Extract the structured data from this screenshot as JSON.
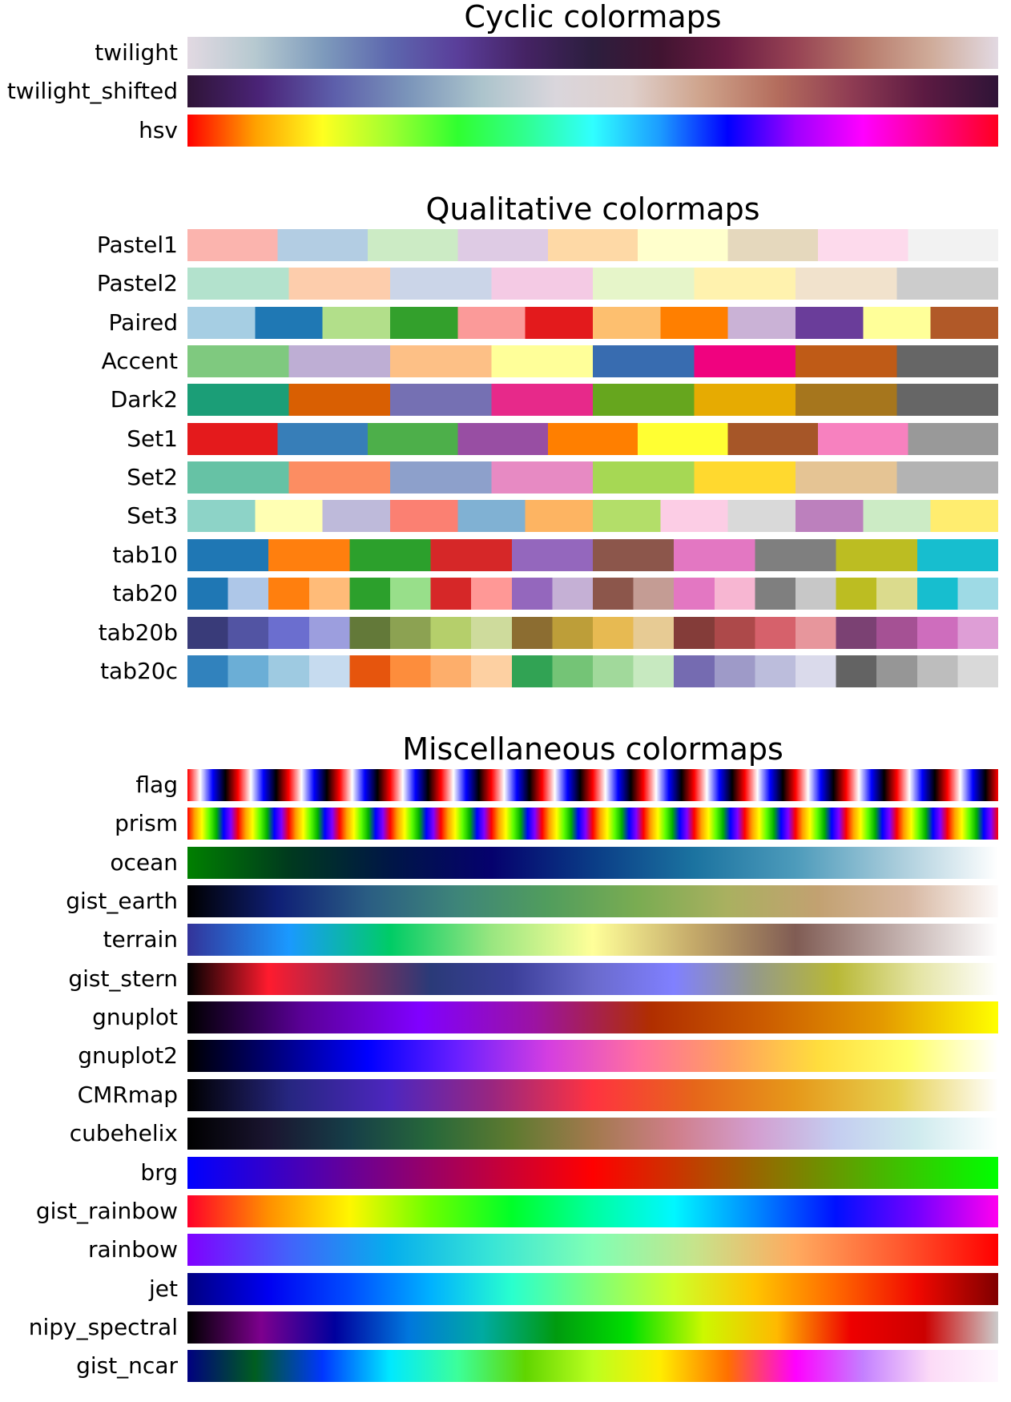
{
  "sections": [
    {
      "title": "Cyclic colormaps",
      "colormaps": [
        {
          "name": "twilight",
          "kind": "gradient",
          "colors": [
            "#e2d9e2",
            "#b6c9d0",
            "#7e9bbc",
            "#5d67ae",
            "#5a3e9a",
            "#452364",
            "#2c1e3e",
            "#411431",
            "#6b1d43",
            "#974354",
            "#b77a6b",
            "#cfab99",
            "#e2d9e2"
          ]
        },
        {
          "name": "twilight_shifted",
          "kind": "gradient",
          "colors": [
            "#2f1437",
            "#4b2479",
            "#5d5fab",
            "#7b95ba",
            "#acc4cc",
            "#dad6dc",
            "#dfd0cc",
            "#cea28a",
            "#b46d5d",
            "#8f3c53",
            "#5c1a42",
            "#2f1437"
          ]
        },
        {
          "name": "hsv",
          "kind": "gradient",
          "colors": [
            "#ff0000",
            "#ffa000",
            "#ffff20",
            "#a0ff30",
            "#30ff30",
            "#30ff90",
            "#30ffff",
            "#1c9bff",
            "#0000ff",
            "#9f00ff",
            "#ff00ff",
            "#ff0090",
            "#ff0020"
          ]
        }
      ]
    },
    {
      "title": "Qualitative colormaps",
      "colormaps": [
        {
          "name": "Pastel1",
          "kind": "discrete",
          "colors": [
            "#fbb4ae",
            "#b3cde3",
            "#ccebc5",
            "#decbe4",
            "#fed9a6",
            "#ffffcc",
            "#e5d8bd",
            "#fddaec",
            "#f2f2f2"
          ]
        },
        {
          "name": "Pastel2",
          "kind": "discrete",
          "colors": [
            "#b3e2cd",
            "#fdcdac",
            "#cbd5e8",
            "#f4cae4",
            "#e6f5c9",
            "#fff2ae",
            "#f1e2cc",
            "#cccccc"
          ]
        },
        {
          "name": "Paired",
          "kind": "discrete",
          "colors": [
            "#a6cee3",
            "#1f78b4",
            "#b2df8a",
            "#33a02c",
            "#fb9a99",
            "#e31a1c",
            "#fdbf6f",
            "#ff7f00",
            "#cab2d6",
            "#6a3d9a",
            "#ffff99",
            "#b15928"
          ]
        },
        {
          "name": "Accent",
          "kind": "discrete",
          "colors": [
            "#7fc97f",
            "#beaed4",
            "#fdc086",
            "#ffff99",
            "#386cb0",
            "#f0027f",
            "#bf5b17",
            "#666666"
          ]
        },
        {
          "name": "Dark2",
          "kind": "discrete",
          "colors": [
            "#1b9e77",
            "#d95f02",
            "#7570b3",
            "#e7298a",
            "#66a61e",
            "#e6ab02",
            "#a6761d",
            "#666666"
          ]
        },
        {
          "name": "Set1",
          "kind": "discrete",
          "colors": [
            "#e41a1c",
            "#377eb8",
            "#4daf4a",
            "#984ea3",
            "#ff7f00",
            "#ffff33",
            "#a65628",
            "#f781bf",
            "#999999"
          ]
        },
        {
          "name": "Set2",
          "kind": "discrete",
          "colors": [
            "#66c2a5",
            "#fc8d62",
            "#8da0cb",
            "#e78ac3",
            "#a6d854",
            "#ffd92f",
            "#e5c494",
            "#b3b3b3"
          ]
        },
        {
          "name": "Set3",
          "kind": "discrete",
          "colors": [
            "#8dd3c7",
            "#ffffb3",
            "#bebada",
            "#fb8072",
            "#80b1d3",
            "#fdb462",
            "#b3de69",
            "#fccde5",
            "#d9d9d9",
            "#bc80bd",
            "#ccebc5",
            "#ffed6f"
          ]
        },
        {
          "name": "tab10",
          "kind": "discrete",
          "colors": [
            "#1f77b4",
            "#ff7f0e",
            "#2ca02c",
            "#d62728",
            "#9467bd",
            "#8c564b",
            "#e377c2",
            "#7f7f7f",
            "#bcbd22",
            "#17becf"
          ]
        },
        {
          "name": "tab20",
          "kind": "discrete",
          "colors": [
            "#1f77b4",
            "#aec7e8",
            "#ff7f0e",
            "#ffbb78",
            "#2ca02c",
            "#98df8a",
            "#d62728",
            "#ff9896",
            "#9467bd",
            "#c5b0d5",
            "#8c564b",
            "#c49c94",
            "#e377c2",
            "#f7b6d2",
            "#7f7f7f",
            "#c7c7c7",
            "#bcbd22",
            "#dbdb8d",
            "#17becf",
            "#9edae5"
          ]
        },
        {
          "name": "tab20b",
          "kind": "discrete",
          "colors": [
            "#393b79",
            "#5254a3",
            "#6b6ecf",
            "#9c9ede",
            "#637939",
            "#8ca252",
            "#b5cf6b",
            "#cedb9c",
            "#8c6d31",
            "#bd9e39",
            "#e7ba52",
            "#e7cb94",
            "#843c39",
            "#ad494a",
            "#d6616b",
            "#e7969c",
            "#7b4173",
            "#a55194",
            "#ce6dbd",
            "#de9ed6"
          ]
        },
        {
          "name": "tab20c",
          "kind": "discrete",
          "colors": [
            "#3182bd",
            "#6baed6",
            "#9ecae1",
            "#c6dbef",
            "#e6550d",
            "#fd8d3c",
            "#fdae6b",
            "#fdd0a2",
            "#31a354",
            "#74c476",
            "#a1d99b",
            "#c7e9c0",
            "#756bb1",
            "#9e9ac8",
            "#bcbddc",
            "#dadaeb",
            "#636363",
            "#969696",
            "#bdbdbd",
            "#d9d9d9"
          ]
        }
      ]
    },
    {
      "title": "Miscellaneous colormaps",
      "colormaps": [
        {
          "name": "flag",
          "kind": "repeating",
          "repeats": 16,
          "colors": [
            "#ff0000",
            "#ffffff",
            "#0000ff",
            "#000000",
            "#ff0000"
          ]
        },
        {
          "name": "prism",
          "kind": "repeating",
          "repeats": 16,
          "colors": [
            "#ff0000",
            "#ffa000",
            "#ffff00",
            "#60ff00",
            "#00b000",
            "#0000ff",
            "#8000ff",
            "#ff0000"
          ]
        },
        {
          "name": "ocean",
          "kind": "gradient",
          "colors": [
            "#008000",
            "#003a1e",
            "#001646",
            "#05016d",
            "#0a3c86",
            "#1b73a0",
            "#4d9bbb",
            "#a8ccdb",
            "#ffffff"
          ]
        },
        {
          "name": "gist_earth",
          "kind": "gradient",
          "colors": [
            "#000000",
            "#0f1f76",
            "#2a5d83",
            "#3e8579",
            "#519d5d",
            "#7aac52",
            "#aab060",
            "#c2a171",
            "#d7b7a1",
            "#fdfbfb"
          ]
        },
        {
          "name": "terrain",
          "kind": "gradient",
          "colors": [
            "#333399",
            "#1a99ff",
            "#00cc66",
            "#99e680",
            "#ffff99",
            "#c4a969",
            "#805c54",
            "#c0adaa",
            "#ffffff"
          ]
        },
        {
          "name": "gist_stern",
          "kind": "gradient",
          "colors": [
            "#000000",
            "#ff1b2e",
            "#8e2d55",
            "#2a3a78",
            "#3c3f9a",
            "#6a6acc",
            "#8080ff",
            "#959a88",
            "#b8b836",
            "#e4e4a3",
            "#ffffff"
          ]
        },
        {
          "name": "gnuplot",
          "kind": "gradient",
          "colors": [
            "#000000",
            "#5b0098",
            "#8000ff",
            "#9c13a2",
            "#b02e00",
            "#cc5d00",
            "#e49a00",
            "#ffff00"
          ]
        },
        {
          "name": "gnuplot2",
          "kind": "gradient",
          "colors": [
            "#000000",
            "#000080",
            "#0000ff",
            "#6a1fff",
            "#d43ee1",
            "#ff6fa0",
            "#ff9f5f",
            "#ffdd3d",
            "#ffff6a",
            "#ffffff"
          ]
        },
        {
          "name": "CMRmap",
          "kind": "gradient",
          "colors": [
            "#000000",
            "#262680",
            "#4d26bf",
            "#992680",
            "#ff3340",
            "#e6661a",
            "#e6991a",
            "#e6d04e",
            "#ffffff"
          ]
        },
        {
          "name": "cubehelix",
          "kind": "gradient",
          "colors": [
            "#000000",
            "#1a1530",
            "#163e48",
            "#27683a",
            "#5e7a30",
            "#a2794d",
            "#cf7e89",
            "#d39ed0",
            "#c4cdf0",
            "#cfebee",
            "#ffffff"
          ]
        },
        {
          "name": "brg",
          "kind": "gradient",
          "colors": [
            "#0000ff",
            "#4000be",
            "#80007f",
            "#c0003f",
            "#ff0000",
            "#bf4000",
            "#7f8000",
            "#3fc000",
            "#00ff00"
          ]
        },
        {
          "name": "gist_rainbow",
          "kind": "gradient",
          "colors": [
            "#ff0029",
            "#ff9000",
            "#fff600",
            "#6aff00",
            "#00ff29",
            "#00ff9f",
            "#00f7ff",
            "#0089ff",
            "#0010ff",
            "#7400ff",
            "#ff00ef"
          ]
        },
        {
          "name": "rainbow",
          "kind": "gradient",
          "colors": [
            "#8000ff",
            "#4362fb",
            "#06aeed",
            "#38e5d6",
            "#80ffb4",
            "#c6e48b",
            "#ffaa5f",
            "#ff5b30",
            "#ff0000"
          ]
        },
        {
          "name": "jet",
          "kind": "gradient",
          "colors": [
            "#000080",
            "#0000f1",
            "#004dff",
            "#00b1ff",
            "#29ffce",
            "#7dff7a",
            "#ceff29",
            "#ffc400",
            "#ff6800",
            "#f10800",
            "#800000"
          ]
        },
        {
          "name": "nipy_spectral",
          "kind": "gradient",
          "colors": [
            "#000000",
            "#7d008e",
            "#00009d",
            "#0077dd",
            "#00aaa1",
            "#009b0f",
            "#00e000",
            "#ccf800",
            "#ffb900",
            "#ee0000",
            "#cc0000",
            "#cccccc"
          ]
        },
        {
          "name": "gist_ncar",
          "kind": "gradient",
          "colors": [
            "#000080",
            "#005e20",
            "#0036ff",
            "#00e9ff",
            "#3cff9a",
            "#60d500",
            "#bbff1f",
            "#ffec00",
            "#ff7000",
            "#ff00ff",
            "#c480ff",
            "#fcdbf7",
            "#fef8fe"
          ]
        }
      ]
    }
  ]
}
